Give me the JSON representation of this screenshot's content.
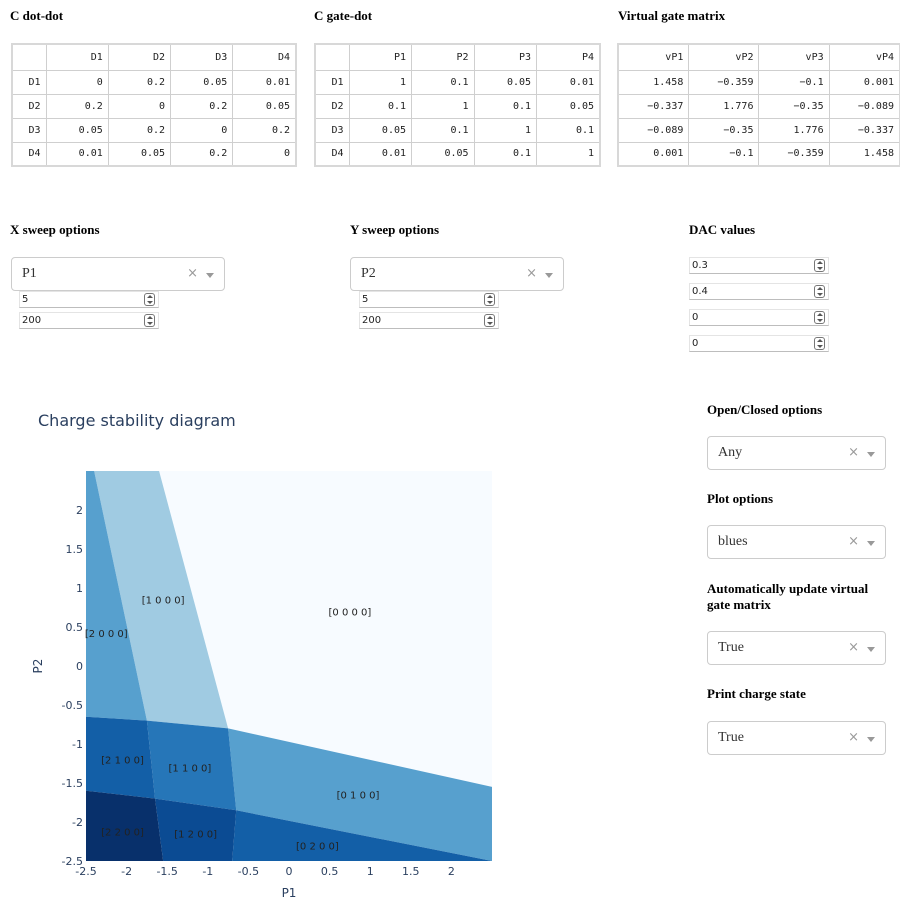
{
  "cdotdot": {
    "title": "C dot-dot",
    "columns": [
      "",
      "D1",
      "D2",
      "D3",
      "D4"
    ],
    "rows": [
      [
        "D1",
        "0",
        "0.2",
        "0.05",
        "0.01"
      ],
      [
        "D2",
        "0.2",
        "0",
        "0.2",
        "0.05"
      ],
      [
        "D3",
        "0.05",
        "0.2",
        "0",
        "0.2"
      ],
      [
        "D4",
        "0.01",
        "0.05",
        "0.2",
        "0"
      ]
    ]
  },
  "cgatedot": {
    "title": "C gate-dot",
    "columns": [
      "",
      "P1",
      "P2",
      "P3",
      "P4"
    ],
    "rows": [
      [
        "D1",
        "1",
        "0.1",
        "0.05",
        "0.01"
      ],
      [
        "D2",
        "0.1",
        "1",
        "0.1",
        "0.05"
      ],
      [
        "D3",
        "0.05",
        "0.1",
        "1",
        "0.1"
      ],
      [
        "D4",
        "0.01",
        "0.05",
        "0.1",
        "1"
      ]
    ]
  },
  "vgm": {
    "title": "Virtual gate matrix",
    "columns": [
      "vP1",
      "vP2",
      "vP3",
      "vP4"
    ],
    "rows": [
      [
        "1.458",
        "−0.359",
        "−0.1",
        "0.001"
      ],
      [
        "−0.337",
        "1.776",
        "−0.35",
        "−0.089"
      ],
      [
        "−0.089",
        "−0.35",
        "1.776",
        "−0.337"
      ],
      [
        "0.001",
        "−0.1",
        "−0.359",
        "1.458"
      ]
    ]
  },
  "xsweep": {
    "title": "X sweep options",
    "gate": "P1",
    "range": "5",
    "resolution": "200"
  },
  "ysweep": {
    "title": "Y sweep options",
    "gate": "P2",
    "range": "5",
    "resolution": "200"
  },
  "dac": {
    "title": "DAC values",
    "values": [
      "0.3",
      "0.4",
      "0",
      "0"
    ]
  },
  "options": {
    "openclosed": {
      "title": "Open/Closed options",
      "value": "Any"
    },
    "plot": {
      "title": "Plot options",
      "value": "blues"
    },
    "autoupdate": {
      "title": "Automatically update virtual gate matrix",
      "value": "True"
    },
    "printcharge": {
      "title": "Print charge state",
      "value": "True"
    }
  },
  "icons": {
    "clear": "×",
    "clear_name": "clear-icon",
    "arrow_name": "chevron-down-icon",
    "spinner_name": "spinner-icon"
  },
  "chart_data": {
    "type": "heatmap",
    "title": "Charge stability diagram",
    "xlabel": "P1",
    "ylabel": "P2",
    "xlim": [
      -2.5,
      2.5
    ],
    "ylim": [
      -2.5,
      2.5
    ],
    "x_ticks": [
      "-2.5",
      "-2",
      "-1.5",
      "-1",
      "-0.5",
      "0",
      "0.5",
      "1",
      "1.5",
      "2"
    ],
    "y_ticks": [
      "-2.5",
      "-2",
      "-1.5",
      "-1",
      "-0.5",
      "0",
      "0.5",
      "1",
      "1.5",
      "2"
    ],
    "colorscale": "blues",
    "regions": [
      {
        "label": "[0 0 0 0]",
        "x": 0.75,
        "y": 0.7,
        "color": "#f7fbff"
      },
      {
        "label": "[1 0 0 0]",
        "x": -1.55,
        "y": 0.85,
        "color": "#a0cbe2"
      },
      {
        "label": "[2 0 0 0]",
        "x": -2.25,
        "y": 0.42,
        "color": "#57a0ce"
      },
      {
        "label": "[0 1 0 0]",
        "x": 0.85,
        "y": -1.65,
        "color": "#57a0ce"
      },
      {
        "label": "[1 1 0 0]",
        "x": -1.22,
        "y": -1.3,
        "color": "#2676b8"
      },
      {
        "label": "[2 1 0 0]",
        "x": -2.05,
        "y": -1.2,
        "color": "#135fa7"
      },
      {
        "label": "[0 2 0 0]",
        "x": 0.35,
        "y": -2.3,
        "color": "#135fa7"
      },
      {
        "label": "[1 2 0 0]",
        "x": -1.15,
        "y": -2.15,
        "color": "#0b4b93"
      },
      {
        "label": "[2 2 0 0]",
        "x": -2.05,
        "y": -2.12,
        "color": "#08306b"
      }
    ]
  }
}
